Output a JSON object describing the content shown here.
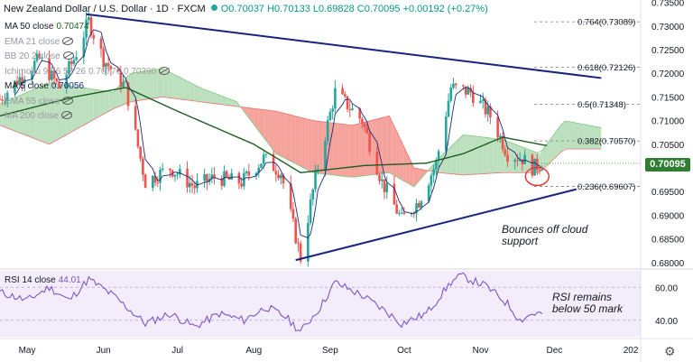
{
  "header": {
    "symbol": "New Zealand Dollar / U.S. Dollar · 1D · FXCM",
    "ohlc": "O0.70037  H0.70133  L0.69828  C0.70095  +0.00192 (+0.27%)"
  },
  "legend": [
    {
      "label": "MA 50 close",
      "value": "0.70474",
      "color": "#1b5e20",
      "hidden": false
    },
    {
      "label": "EMA 21 close",
      "value": "",
      "color": "#9e9e9e",
      "hidden": true
    },
    {
      "label": "BB 20 2 close",
      "value": "",
      "color": "#9e9e9e",
      "hidden": true
    },
    {
      "label": "Ichimoku 9 26 52 26",
      "value": "0.70776  0.70390",
      "color": "#9e9e9e",
      "hidden": true
    },
    {
      "label": "MA 5 close",
      "value": "0.70056",
      "color": "#1a237e",
      "hidden": false
    },
    {
      "label": "EMA 55 close",
      "value": "",
      "color": "#9e9e9e",
      "hidden": true
    },
    {
      "label": "MA 200 close",
      "value": "",
      "color": "#9e9e9e",
      "hidden": true
    }
  ],
  "current_price": "0.70095",
  "annotations": {
    "price_note": "Bounces off cloud\nsupport",
    "rsi_note": "RSI remains\nbelow 50 mark"
  },
  "rsi": {
    "label": "RSI 14 close",
    "value": "44.01"
  },
  "chart_data": {
    "type": "candlestick",
    "x_ticks": [
      {
        "label": "May",
        "date": "2021-05-01"
      },
      {
        "label": "Jun",
        "date": "2021-06-01"
      },
      {
        "label": "Jul",
        "date": "2021-07-01"
      },
      {
        "label": "Aug",
        "date": "2021-08-01"
      },
      {
        "label": "Sep",
        "date": "2021-09-01"
      },
      {
        "label": "Oct",
        "date": "2021-10-01"
      },
      {
        "label": "Nov",
        "date": "2021-11-01"
      },
      {
        "label": "Dec",
        "date": "2021-12-01"
      },
      {
        "label": "202",
        "date": "2022-01-01"
      }
    ],
    "x_range": [
      "2021-04-20",
      "2022-01-05"
    ],
    "y_ticks": [
      "0.73500",
      "0.73000",
      "0.72500",
      "0.72000",
      "0.71500",
      "0.71000",
      "0.70500",
      "0.70000",
      "0.69500",
      "0.69000",
      "0.68500",
      "0.68000"
    ],
    "ylim": [
      0.679,
      0.7355
    ],
    "price_anchors": [
      [
        "2021-04-20",
        0.7145
      ],
      [
        "2021-04-28",
        0.719
      ],
      [
        "2021-05-06",
        0.723
      ],
      [
        "2021-05-14",
        0.717
      ],
      [
        "2021-05-20",
        0.723
      ],
      [
        "2021-05-26",
        0.731
      ],
      [
        "2021-06-01",
        0.723
      ],
      [
        "2021-06-10",
        0.717
      ],
      [
        "2021-06-18",
        0.697
      ],
      [
        "2021-06-28",
        0.7
      ],
      [
        "2021-07-08",
        0.696
      ],
      [
        "2021-07-16",
        0.698
      ],
      [
        "2021-07-27",
        0.697
      ],
      [
        "2021-08-05",
        0.702
      ],
      [
        "2021-08-12",
        0.699
      ],
      [
        "2021-08-20",
        0.681
      ],
      [
        "2021-08-26",
        0.698
      ],
      [
        "2021-09-03",
        0.716
      ],
      [
        "2021-09-14",
        0.71
      ],
      [
        "2021-09-22",
        0.697
      ],
      [
        "2021-09-30",
        0.689
      ],
      [
        "2021-10-07",
        0.693
      ],
      [
        "2021-10-14",
        0.701
      ],
      [
        "2021-10-20",
        0.717
      ],
      [
        "2021-10-28",
        0.716
      ],
      [
        "2021-11-05",
        0.711
      ],
      [
        "2021-11-12",
        0.703
      ],
      [
        "2021-11-18",
        0.702
      ],
      [
        "2021-11-22",
        0.7
      ],
      [
        "2021-11-26",
        0.701
      ]
    ],
    "ma50_anchors": [
      [
        "2021-04-20",
        0.711
      ],
      [
        "2021-05-20",
        0.715
      ],
      [
        "2021-06-10",
        0.717
      ],
      [
        "2021-07-01",
        0.712
      ],
      [
        "2021-08-01",
        0.705
      ],
      [
        "2021-08-20",
        0.699
      ],
      [
        "2021-09-15",
        0.7005
      ],
      [
        "2021-10-10",
        0.701
      ],
      [
        "2021-10-25",
        0.703
      ],
      [
        "2021-11-10",
        0.7065
      ],
      [
        "2021-11-28",
        0.7047
      ]
    ],
    "cloud": [
      {
        "date": "2021-04-20",
        "a": 0.7135,
        "b": 0.709
      },
      {
        "date": "2021-05-10",
        "a": 0.718,
        "b": 0.705
      },
      {
        "date": "2021-06-05",
        "a": 0.716,
        "b": 0.7125
      },
      {
        "date": "2021-06-12",
        "a": 0.72,
        "b": 0.714
      },
      {
        "date": "2021-06-25",
        "a": 0.721,
        "b": 0.715
      },
      {
        "date": "2021-07-10",
        "a": 0.717,
        "b": 0.714
      },
      {
        "date": "2021-07-25",
        "a": 0.714,
        "b": 0.713
      },
      {
        "date": "2021-08-10",
        "a": 0.703,
        "b": 0.712
      },
      {
        "date": "2021-08-25",
        "a": 0.699,
        "b": 0.71
      },
      {
        "date": "2021-09-10",
        "a": 0.698,
        "b": 0.709
      },
      {
        "date": "2021-09-25",
        "a": 0.699,
        "b": 0.711
      },
      {
        "date": "2021-10-05",
        "a": 0.696,
        "b": 0.7
      },
      {
        "date": "2021-10-15",
        "a": 0.702,
        "b": 0.699
      },
      {
        "date": "2021-10-25",
        "a": 0.707,
        "b": 0.6985
      },
      {
        "date": "2021-11-10",
        "a": 0.706,
        "b": 0.699
      },
      {
        "date": "2021-11-25",
        "a": 0.703,
        "b": 0.699
      },
      {
        "date": "2021-12-05",
        "a": 0.71,
        "b": 0.704
      },
      {
        "date": "2021-12-20",
        "a": 0.7085,
        "b": 0.704
      }
    ],
    "trendlines": [
      {
        "name": "upper",
        "from": [
          "2021-05-25",
          0.7325
        ],
        "to": [
          "2021-12-20",
          0.719
        ]
      },
      {
        "name": "lower",
        "from": [
          "2021-08-18",
          0.6805
        ],
        "to": [
          "2021-12-10",
          0.6955
        ]
      }
    ],
    "fibonacci": [
      {
        "label": "0.764(0.73089)",
        "value": 0.73089
      },
      {
        "label": "0.618(0.72126)",
        "value": 0.72126
      },
      {
        "label": "0.5(0.71348)",
        "value": 0.71348
      },
      {
        "label": "0.382(0.70570)",
        "value": 0.7057
      },
      {
        "label": "0.236(0.69607)",
        "value": 0.69607
      }
    ],
    "rsi_ticks": [
      "60.00",
      "40.00"
    ],
    "rsi_ylim": [
      30,
      70
    ],
    "rsi_anchors": [
      [
        "2021-04-20",
        57
      ],
      [
        "2021-05-01",
        52
      ],
      [
        "2021-05-10",
        60
      ],
      [
        "2021-05-18",
        52
      ],
      [
        "2021-05-26",
        65
      ],
      [
        "2021-06-05",
        55
      ],
      [
        "2021-06-18",
        38
      ],
      [
        "2021-06-28",
        44
      ],
      [
        "2021-07-08",
        36
      ],
      [
        "2021-07-18",
        44
      ],
      [
        "2021-07-28",
        40
      ],
      [
        "2021-08-06",
        48
      ],
      [
        "2021-08-14",
        42
      ],
      [
        "2021-08-20",
        33
      ],
      [
        "2021-08-28",
        48
      ],
      [
        "2021-09-03",
        63
      ],
      [
        "2021-09-14",
        55
      ],
      [
        "2021-09-24",
        45
      ],
      [
        "2021-09-30",
        38
      ],
      [
        "2021-10-10",
        44
      ],
      [
        "2021-10-20",
        63
      ],
      [
        "2021-10-24",
        67
      ],
      [
        "2021-11-03",
        61
      ],
      [
        "2021-11-12",
        50
      ],
      [
        "2021-11-17",
        40
      ],
      [
        "2021-11-22",
        44
      ],
      [
        "2021-11-26",
        44
      ]
    ]
  }
}
